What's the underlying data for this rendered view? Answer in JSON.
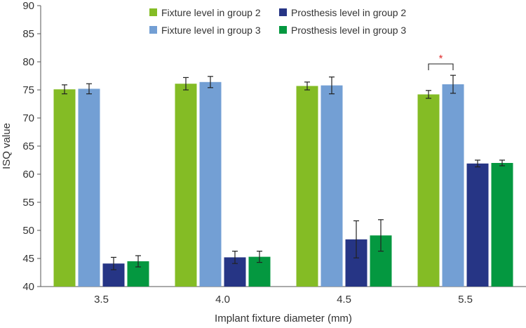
{
  "chart_data": {
    "type": "bar",
    "title": "",
    "xlabel": "Implant fixture diameter (mm)",
    "ylabel": "ISQ value",
    "ylim": [
      40,
      90
    ],
    "yticks": [
      40,
      45,
      50,
      55,
      60,
      65,
      70,
      75,
      80,
      85,
      90
    ],
    "categories": [
      "3.5",
      "4.0",
      "4.5",
      "5.5"
    ],
    "legend_position": "top-center",
    "series": [
      {
        "name": "Fixture level in group 2",
        "color": "#84bc25",
        "values": [
          75.1,
          76.1,
          75.7,
          74.2
        ],
        "errors": [
          0.8,
          1.1,
          0.7,
          0.7
        ]
      },
      {
        "name": "Fixture level in group 3",
        "color": "#739fd4",
        "values": [
          75.2,
          76.4,
          75.8,
          76.0
        ],
        "errors": [
          0.9,
          1.0,
          1.5,
          1.6
        ]
      },
      {
        "name": "Prosthesis level in group 2",
        "color": "#263585",
        "values": [
          44.1,
          45.2,
          48.4,
          61.9
        ],
        "errors": [
          1.1,
          1.1,
          3.3,
          0.6
        ]
      },
      {
        "name": "Prosthesis level in group 3",
        "color": "#049840",
        "values": [
          44.5,
          45.3,
          49.1,
          62.0
        ],
        "errors": [
          1.0,
          1.0,
          2.8,
          0.5
        ]
      }
    ],
    "annotations": [
      {
        "text": "*",
        "category": "5.5",
        "between_series": [
          0,
          1
        ],
        "color": "#e03030"
      }
    ]
  }
}
